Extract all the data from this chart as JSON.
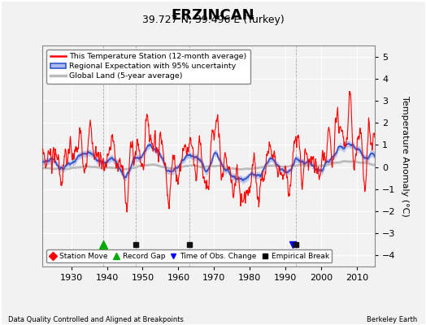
{
  "title": "ERZINCAN",
  "subtitle": "39.727 N, 39.496 E (Turkey)",
  "xlabel_bottom": "Data Quality Controlled and Aligned at Breakpoints",
  "xlabel_right": "Berkeley Earth",
  "ylabel": "Temperature Anomaly (°C)",
  "ylim": [
    -4.5,
    5.5
  ],
  "yticks": [
    -4,
    -3,
    -2,
    -1,
    0,
    1,
    2,
    3,
    4,
    5
  ],
  "xlim": [
    1922,
    2015
  ],
  "xticks": [
    1930,
    1940,
    1950,
    1960,
    1970,
    1980,
    1990,
    2000,
    2010
  ],
  "start_year": 1922,
  "end_year": 2015,
  "station_color": "#FF0000",
  "regional_color": "#3355CC",
  "regional_fill_color": "#AABBEE",
  "global_color": "#BBBBBB",
  "background_color": "#F2F2F2",
  "plot_bg_color": "#F2F2F2",
  "grid_color": "#FFFFFF",
  "title_fontsize": 13,
  "subtitle_fontsize": 9,
  "label_fontsize": 8,
  "tick_fontsize": 8,
  "marker_y": -3.5,
  "markers": {
    "record_gap": {
      "year": 1939,
      "color": "#00AA00",
      "marker": "^"
    },
    "empirical_breaks": [
      1948,
      1963,
      1993
    ],
    "time_obs": {
      "year": 1993,
      "color": "#0000FF",
      "marker": "v"
    },
    "empirical_color": "#111111",
    "empirical_marker": "s"
  }
}
